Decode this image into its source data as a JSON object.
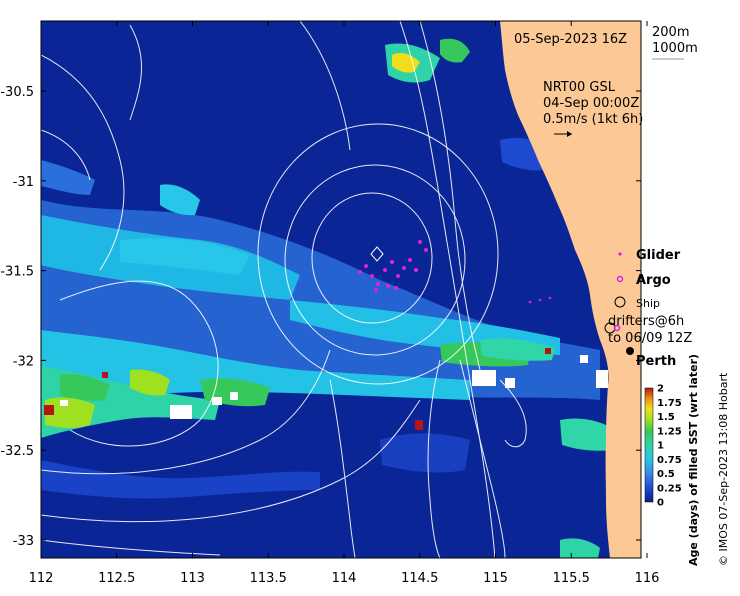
{
  "map": {
    "date_label": "05-Sep-2023 16Z",
    "depth_labels": [
      "200m",
      "1000m"
    ],
    "current_source": "NRT00 GSL",
    "current_time": "04-Sep 00:00Z",
    "current_scale": "0.5m/s (1kt 6h)",
    "legend": {
      "glider": "Glider",
      "argo": "Argo",
      "ship": "Ship",
      "drifters_line1": "drifters@6h",
      "drifters_line2": "to 06/09 12Z"
    },
    "place_label": "Perth",
    "colorbar": {
      "title": "Age (days) of filled SST (wrt later)",
      "ticks": [
        "0",
        "0.25",
        "0.5",
        "0.75",
        "1",
        "1.25",
        "1.5",
        "1.75",
        "2"
      ],
      "colors": [
        "#0a1f8c",
        "#1e4ad2",
        "#3a86e6",
        "#25c6e6",
        "#30d6a8",
        "#36c85a",
        "#9fe020",
        "#f2dd1a",
        "#f08a14",
        "#b41414"
      ]
    },
    "credit": "© IMOS 07-Sep-2023 13:08 Hobart",
    "lat_ticks": [
      "-30.5",
      "-31",
      "-31.5",
      "-32",
      "-32.5",
      "-33"
    ],
    "lon_ticks": [
      "112",
      "112.5",
      "113",
      "113.5",
      "114",
      "114.5",
      "115",
      "115.5",
      "116"
    ],
    "colors": {
      "ocean": "#0a2596",
      "land": "#fcc896"
    }
  }
}
